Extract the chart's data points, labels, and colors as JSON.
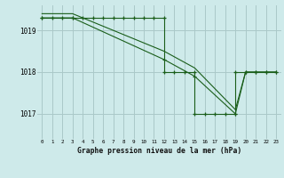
{
  "title": "Graphe pression niveau de la mer (hPa)",
  "bg_color": "#ceeaea",
  "grid_color": "#aac8c8",
  "line_color": "#1a5e1a",
  "xlim": [
    -0.5,
    23.5
  ],
  "ylim": [
    1016.4,
    1019.6
  ],
  "yticks": [
    1017,
    1018,
    1019
  ],
  "xticks": [
    0,
    1,
    2,
    3,
    4,
    5,
    6,
    7,
    8,
    9,
    10,
    11,
    12,
    13,
    14,
    15,
    16,
    17,
    18,
    19,
    20,
    21,
    22,
    23
  ],
  "stepped_x": [
    0,
    1,
    2,
    3,
    4,
    5,
    6,
    7,
    8,
    9,
    10,
    11,
    12,
    12,
    13,
    14,
    15,
    15,
    16,
    17,
    18,
    19,
    19,
    20,
    21,
    22,
    23
  ],
  "stepped_y": [
    1019.3,
    1019.3,
    1019.3,
    1019.3,
    1019.3,
    1019.3,
    1019.3,
    1019.3,
    1019.3,
    1019.3,
    1019.3,
    1019.3,
    1019.3,
    1018.0,
    1018.0,
    1018.0,
    1018.0,
    1017.0,
    1017.0,
    1017.0,
    1017.0,
    1017.0,
    1018.0,
    1018.0,
    1018.0,
    1018.0,
    1018.0
  ],
  "diag1_x": [
    0,
    3,
    12,
    15,
    19,
    20,
    21,
    22,
    23
  ],
  "diag1_y": [
    1019.3,
    1019.3,
    1018.3,
    1017.9,
    1017.0,
    1018.0,
    1018.0,
    1018.0,
    1018.0
  ],
  "diag2_x": [
    0,
    3,
    12,
    15,
    19,
    20,
    21,
    22,
    23
  ],
  "diag2_y": [
    1019.4,
    1019.4,
    1018.5,
    1018.1,
    1017.1,
    1018.0,
    1018.0,
    1018.0,
    1018.0
  ],
  "marker": "+"
}
